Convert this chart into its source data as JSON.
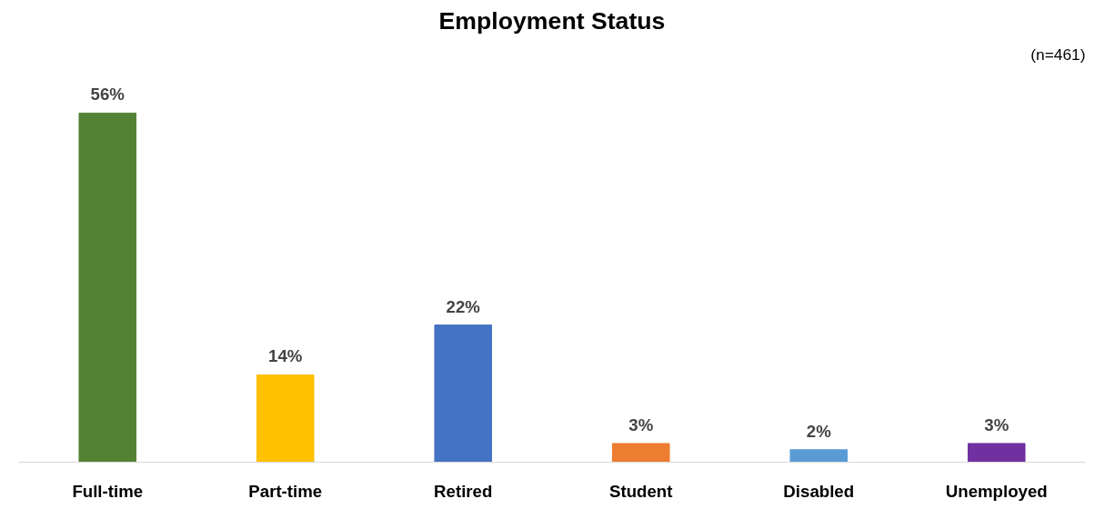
{
  "chart_data": {
    "type": "bar",
    "title": "Employment Status",
    "annotations": [
      "(n=461)"
    ],
    "categories": [
      "Full-time",
      "Part-time",
      "Retired",
      "Student",
      "Disabled",
      "Unemployed"
    ],
    "values": [
      56,
      14,
      22,
      3,
      2,
      3
    ],
    "value_labels": [
      "56%",
      "14%",
      "22%",
      "3%",
      "2%",
      "3%"
    ],
    "colors": [
      "#548235",
      "#ffc000",
      "#4472c4",
      "#ed7d31",
      "#5b9bd5",
      "#7030a0"
    ],
    "grid": false
  }
}
